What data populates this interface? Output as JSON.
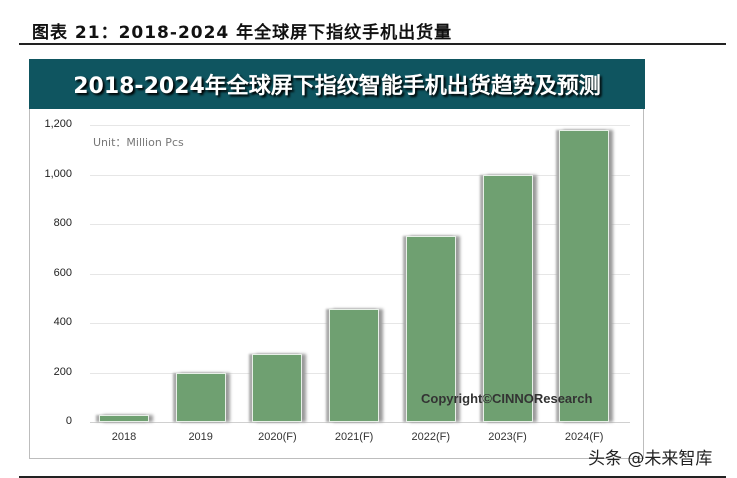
{
  "figure": {
    "caption": "图表 21：2018-2024 年全球屏下指纹手机出货量",
    "watermark": "头条 @未来智库"
  },
  "chart_data": {
    "type": "bar",
    "title": "2018-2024年全球屏下指纹智能手机出货趋势及预测",
    "unit_label": "Unit：Million Pcs",
    "categories": [
      "2018",
      "2019",
      "2020(F)",
      "2021(F)",
      "2022(F)",
      "2023(F)",
      "2024(F)"
    ],
    "values": [
      30,
      200,
      275,
      455,
      750,
      1000,
      1180
    ],
    "xlabel": "",
    "ylabel": "Million Pcs",
    "ylim": [
      0,
      1200
    ],
    "yticks": [
      "0",
      "200",
      "400",
      "600",
      "800",
      "1,000",
      "1,200"
    ],
    "grid": true,
    "legend": null,
    "bar_color": "#6fa071",
    "banner_color": "#0f5560",
    "annotation": "Copyright©CINNOResearch"
  }
}
